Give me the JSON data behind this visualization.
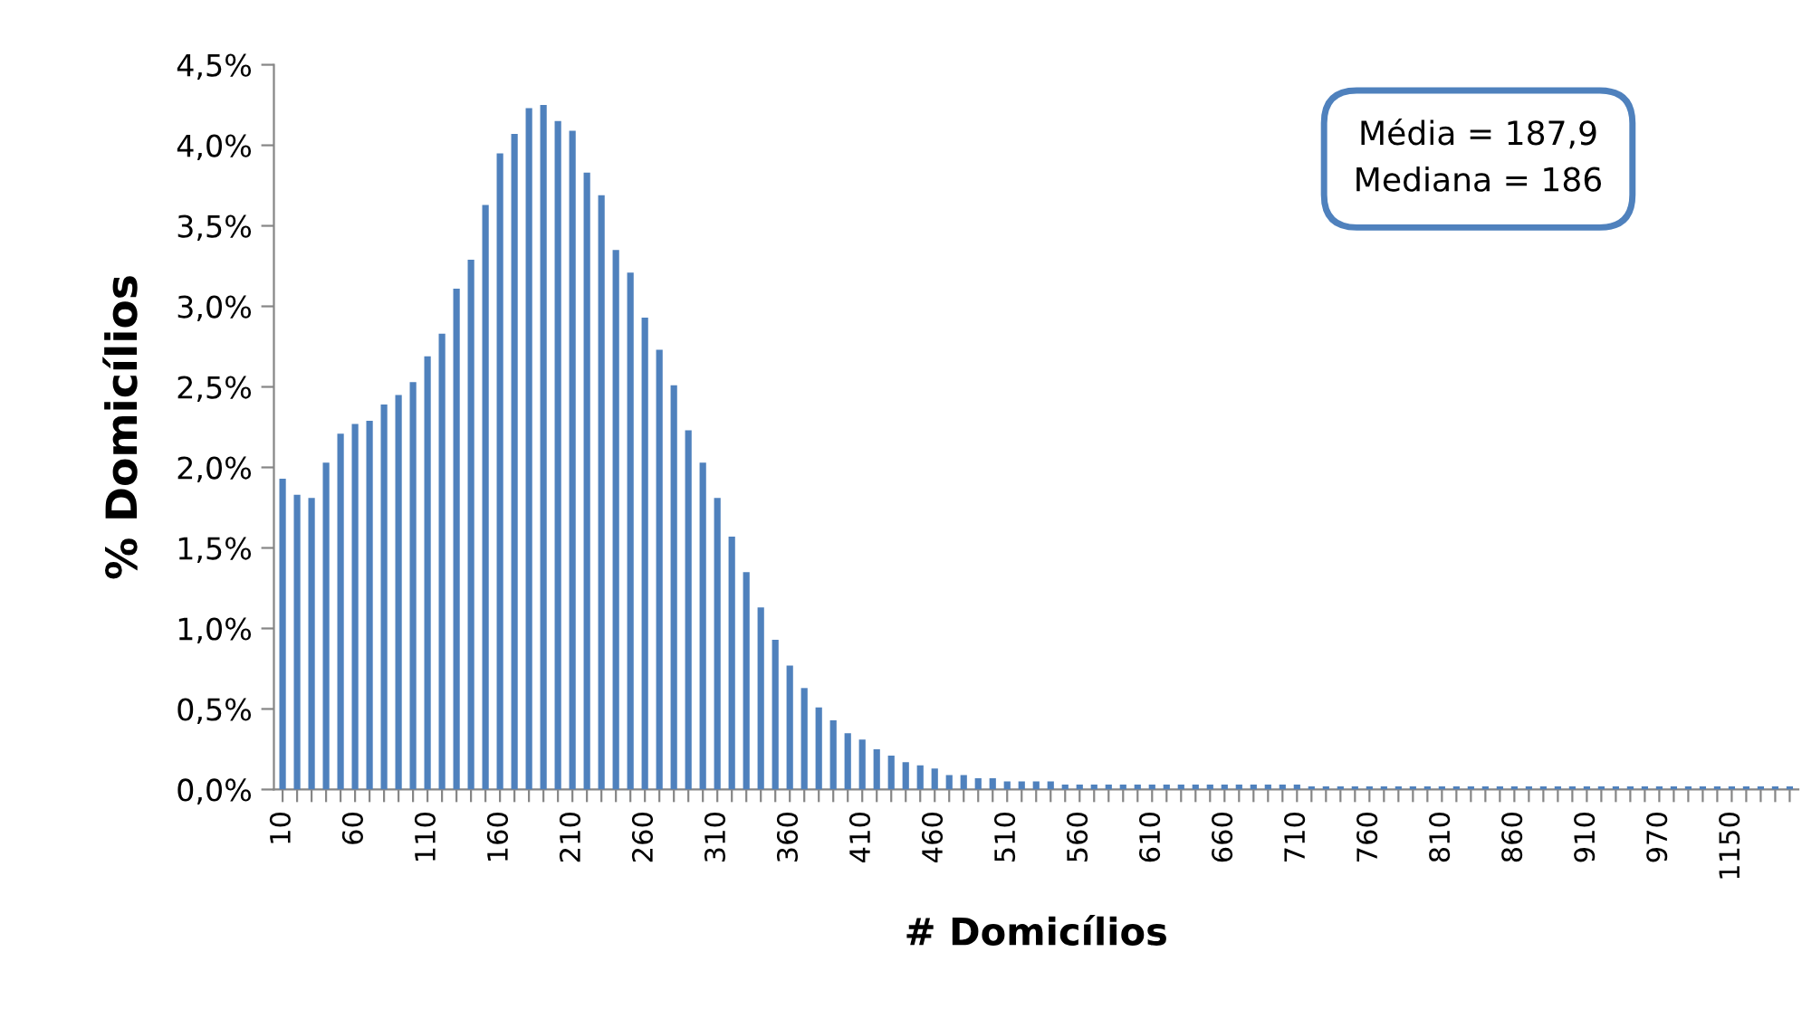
{
  "chart_data": {
    "type": "bar",
    "xlabel": "# Domicílios",
    "ylabel": "% Domicílios",
    "categories": [
      "10",
      null,
      null,
      null,
      null,
      "60",
      null,
      null,
      null,
      null,
      "110",
      null,
      null,
      null,
      null,
      "160",
      null,
      null,
      null,
      null,
      "210",
      null,
      null,
      null,
      null,
      "260",
      null,
      null,
      null,
      null,
      "310",
      null,
      null,
      null,
      null,
      "360",
      null,
      null,
      null,
      null,
      "410",
      null,
      null,
      null,
      null,
      "460",
      null,
      null,
      null,
      null,
      "510",
      null,
      null,
      null,
      null,
      "560",
      null,
      null,
      null,
      null,
      "610",
      null,
      null,
      null,
      null,
      "660",
      null,
      null,
      null,
      null,
      "710",
      null,
      null,
      null,
      null,
      "760",
      null,
      null,
      null,
      null,
      "810",
      null,
      null,
      null,
      null,
      "860",
      null,
      null,
      null,
      null,
      "910",
      null,
      null,
      null,
      null,
      "970",
      null,
      null,
      null,
      null,
      "1150",
      null,
      null,
      null,
      null
    ],
    "values": [
      1.93,
      1.83,
      1.81,
      2.03,
      2.21,
      2.27,
      2.29,
      2.39,
      2.45,
      2.53,
      2.69,
      2.83,
      3.11,
      3.29,
      3.63,
      3.95,
      4.07,
      4.23,
      4.25,
      4.15,
      4.09,
      3.83,
      3.69,
      3.35,
      3.21,
      2.93,
      2.73,
      2.51,
      2.23,
      2.03,
      1.81,
      1.57,
      1.35,
      1.13,
      0.93,
      0.77,
      0.63,
      0.51,
      0.43,
      0.35,
      0.31,
      0.25,
      0.21,
      0.17,
      0.15,
      0.13,
      0.09,
      0.09,
      0.07,
      0.07,
      0.05,
      0.05,
      0.05,
      0.05,
      0.03,
      0.03,
      0.03,
      0.03,
      0.03,
      0.03,
      0.03,
      0.03,
      0.03,
      0.03,
      0.03,
      0.03,
      0.03,
      0.03,
      0.03,
      0.03,
      0.03,
      0.02,
      0.02,
      0.02,
      0.02,
      0.02,
      0.02,
      0.02,
      0.02,
      0.02,
      0.02,
      0.02,
      0.02,
      0.02,
      0.02,
      0.02,
      0.02,
      0.02,
      0.02,
      0.02,
      0.02,
      0.02,
      0.02,
      0.02,
      0.02,
      0.02,
      0.02,
      0.02,
      0.02,
      0.02,
      0.02,
      0.02,
      0.02,
      0.02,
      0.02
    ],
    "color": "#4f81bd",
    "ylim": [
      0,
      4.5
    ],
    "yticks": [
      {
        "value": 0,
        "label": "0,0%"
      },
      {
        "value": 0.5,
        "label": "0,5%"
      },
      {
        "value": 1,
        "label": "1,0%"
      },
      {
        "value": 1.5,
        "label": "1,5%"
      },
      {
        "value": 2,
        "label": "2,0%"
      },
      {
        "value": 2.5,
        "label": "2,5%"
      },
      {
        "value": 3,
        "label": "3,0%"
      },
      {
        "value": 3.5,
        "label": "3,5%"
      },
      {
        "value": 4,
        "label": "4,0%"
      },
      {
        "value": 4.5,
        "label": "4,5%"
      }
    ],
    "annotations": [
      "Média = 187,9\nMediana = 186"
    ],
    "grid": false,
    "legend": false
  }
}
